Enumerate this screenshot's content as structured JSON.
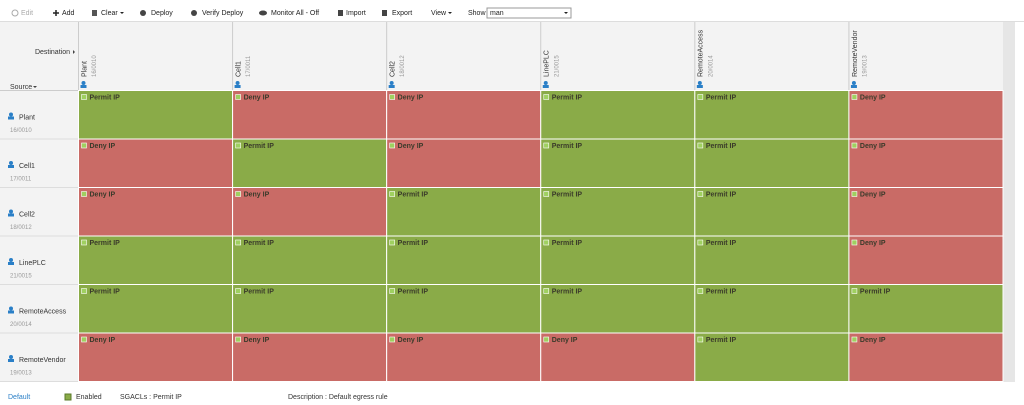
{
  "toolbar": {
    "edit": "Edit",
    "add": "Add",
    "clear": "Clear",
    "deploy": "Deploy",
    "verify_deploy": "Verify Deploy",
    "monitor": "Monitor All - Off",
    "import": "Import",
    "export": "Export",
    "view": "View",
    "show_label": "Show",
    "show_value": "man"
  },
  "matrix": {
    "destination_label": "Destination",
    "source_label": "Source",
    "cell_colors": {
      "Permit IP": "#8aab48",
      "Deny IP": "#c96b66"
    },
    "columns": [
      {
        "name": "Plant",
        "tag": "16/0010"
      },
      {
        "name": "Cell1",
        "tag": "17/0011"
      },
      {
        "name": "Cell2",
        "tag": "18/0012"
      },
      {
        "name": "LinePLC",
        "tag": "21/0015"
      },
      {
        "name": "RemoteAccess",
        "tag": "20/0014"
      },
      {
        "name": "RemoteVendor",
        "tag": "19/0013"
      }
    ],
    "rows": [
      {
        "name": "Plant",
        "tag": "16/0010",
        "cells": [
          "Permit IP",
          "Deny IP",
          "Deny IP",
          "Permit IP",
          "Permit IP",
          "Deny IP"
        ]
      },
      {
        "name": "Cell1",
        "tag": "17/0011",
        "cells": [
          "Deny IP",
          "Permit IP",
          "Deny IP",
          "Permit IP",
          "Permit IP",
          "Deny IP"
        ]
      },
      {
        "name": "Cell2",
        "tag": "18/0012",
        "cells": [
          "Deny IP",
          "Deny IP",
          "Permit IP",
          "Permit IP",
          "Permit IP",
          "Deny IP"
        ]
      },
      {
        "name": "LinePLC",
        "tag": "21/0015",
        "cells": [
          "Permit IP",
          "Permit IP",
          "Permit IP",
          "Permit IP",
          "Permit IP",
          "Deny IP"
        ]
      },
      {
        "name": "RemoteAccess",
        "tag": "20/0014",
        "cells": [
          "Permit IP",
          "Permit IP",
          "Permit IP",
          "Permit IP",
          "Permit IP",
          "Permit IP"
        ]
      },
      {
        "name": "RemoteVendor",
        "tag": "19/0013",
        "cells": [
          "Deny IP",
          "Deny IP",
          "Deny IP",
          "Deny IP",
          "Permit IP",
          "Deny IP"
        ]
      }
    ]
  },
  "footer": {
    "default": "Default",
    "enabled": "Enabled",
    "sgacls": "SGACLs : Permit IP",
    "description": "Description : Default egress rule"
  }
}
